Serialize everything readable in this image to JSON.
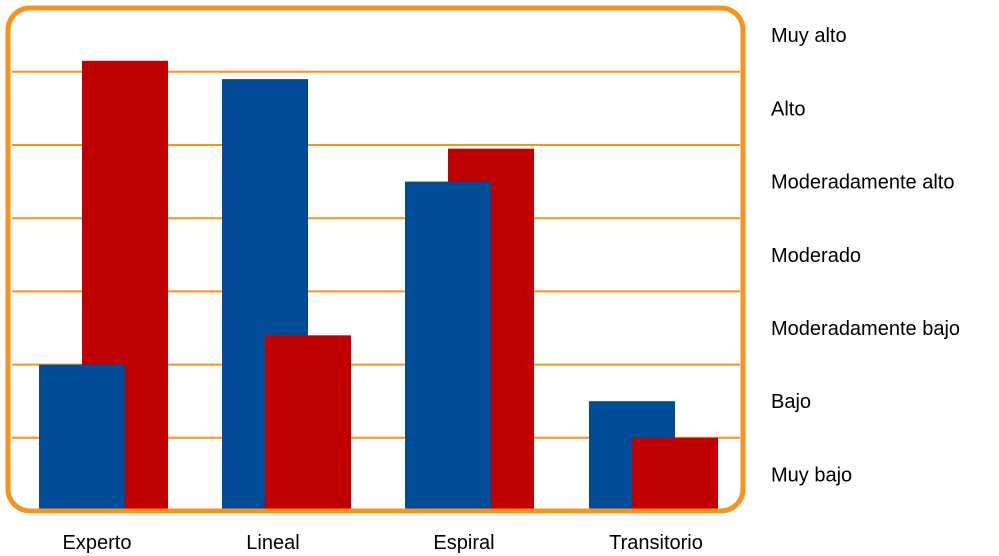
{
  "chart_data": {
    "type": "bar",
    "categories": [
      "Experto",
      "Lineal",
      "Espiral",
      "Transitorio"
    ],
    "y_levels": [
      "Muy bajo",
      "Bajo",
      "Moderadamente bajo",
      "Moderado",
      "Moderadamente alto",
      "Alto",
      "Muy alto"
    ],
    "series": [
      {
        "color": "#004C97",
        "values": [
          2.0,
          5.9,
          4.5,
          1.5
        ]
      },
      {
        "color": "#C00000",
        "values": [
          6.15,
          2.4,
          4.95,
          1.0
        ]
      }
    ],
    "ylim": [
      0,
      7
    ],
    "grid": true,
    "grid_color": "#F7941D",
    "frame_color": "#F7941D",
    "legend": "none"
  }
}
